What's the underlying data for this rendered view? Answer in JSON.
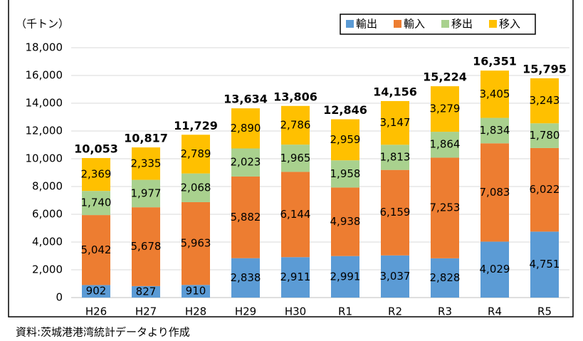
{
  "chart_data": {
    "type": "bar",
    "stacked": true,
    "unit_label": "（千トン）",
    "source": "資料:茨城港港湾統計データより作成",
    "categories": [
      "H26",
      "H27",
      "H28",
      "H29",
      "H30",
      "R1",
      "R2",
      "R3",
      "R4",
      "R5"
    ],
    "series": [
      {
        "name": "輸出",
        "color": "#5b9bd5",
        "values": [
          902,
          827,
          910,
          2838,
          2911,
          2991,
          3037,
          2828,
          4029,
          4751
        ],
        "value_labels": [
          "902",
          "827",
          "910",
          "2,838",
          "2,911",
          "2,991",
          "3,037",
          "2,828",
          "4,029",
          "4,751"
        ]
      },
      {
        "name": "輸入",
        "color": "#ed7d31",
        "values": [
          5042,
          5678,
          5963,
          5882,
          6144,
          4938,
          6159,
          7253,
          7083,
          6022
        ],
        "value_labels": [
          "5,042",
          "5,678",
          "5,963",
          "5,882",
          "6,144",
          "4,938",
          "6,159",
          "7,253",
          "7,083",
          "6,022"
        ]
      },
      {
        "name": "移出",
        "color": "#a9d18e",
        "values": [
          1740,
          1977,
          2068,
          2023,
          1965,
          1958,
          1813,
          1864,
          1834,
          1780
        ],
        "value_labels": [
          "1,740",
          "1,977",
          "2,068",
          "2,023",
          "1,965",
          "1,958",
          "1,813",
          "1,864",
          "1,834",
          "1,780"
        ]
      },
      {
        "name": "移入",
        "color": "#ffc000",
        "values": [
          2369,
          2335,
          2789,
          2890,
          2786,
          2959,
          3147,
          3279,
          3405,
          3243
        ],
        "value_labels": [
          "2,369",
          "2,335",
          "2,789",
          "2,890",
          "2,786",
          "2,959",
          "3,147",
          "3,279",
          "3,405",
          "3,243"
        ]
      }
    ],
    "totals": [
      10053,
      10817,
      11729,
      13634,
      13806,
      12846,
      14156,
      15224,
      16351,
      15795
    ],
    "total_labels": [
      "10,053",
      "10,817",
      "11,729",
      "13,634",
      "13,806",
      "12,846",
      "14,156",
      "15,224",
      "16,351",
      "15,795"
    ],
    "ylim": [
      0,
      18000
    ],
    "yticks": [
      0,
      {
        "value": 2000,
        "label": "2,000"
      },
      {
        "value": 4000,
        "label": "4,000"
      },
      {
        "value": 6000,
        "label": "6,000"
      },
      {
        "value": 8000,
        "label": "8,000"
      },
      {
        "value": 10000,
        "label": "10,000"
      },
      {
        "value": 12000,
        "label": "12,000"
      },
      {
        "value": 14000,
        "label": "14,000"
      },
      {
        "value": 16000,
        "label": "16,000"
      },
      {
        "value": 18000,
        "label": "18,000"
      }
    ],
    "grid": true,
    "legend": "top-right"
  }
}
